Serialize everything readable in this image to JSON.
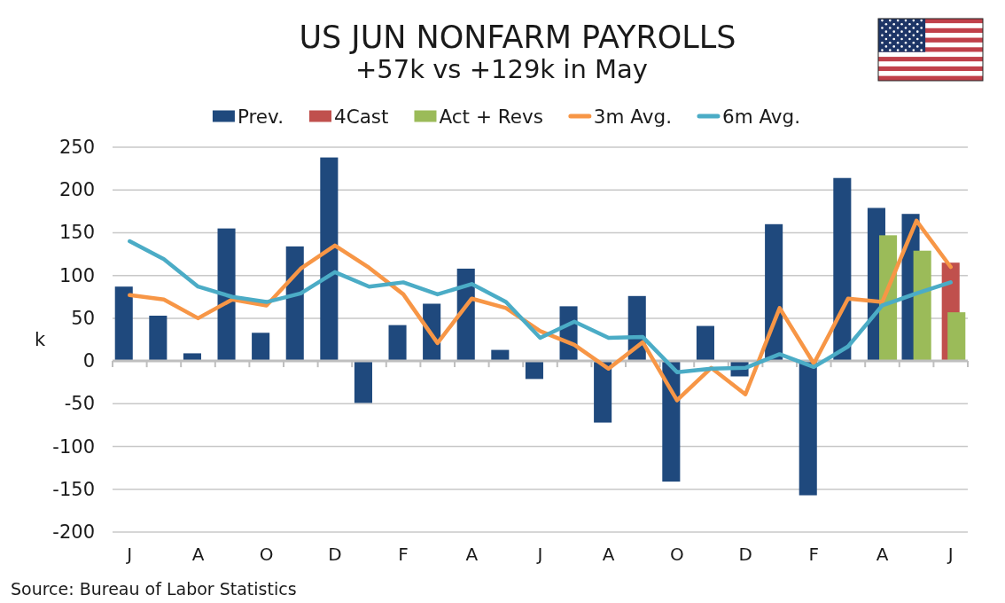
{
  "chart_data": {
    "type": "bar",
    "title": "US JUN NONFARM PAYROLLS",
    "subtitle": "+57k vs +129k in May",
    "ylabel": "k",
    "categories": [
      "J",
      null,
      "A",
      null,
      "O",
      null,
      "D",
      null,
      "F",
      null,
      "A",
      null,
      "J",
      null,
      "A",
      null,
      "O",
      null,
      "D",
      null,
      "F",
      null,
      "A",
      null,
      "J"
    ],
    "series": [
      {
        "name": "Prev.",
        "color": "#1f497d",
        "values": [
          87,
          53,
          9,
          155,
          33,
          134,
          238,
          -49,
          42,
          67,
          108,
          13,
          -21,
          64,
          -72,
          76,
          -141,
          41,
          -18,
          160,
          -157,
          214,
          179,
          172,
          null
        ]
      },
      {
        "name": "4Cast",
        "color": "#c0504d",
        "values": [
          null,
          null,
          null,
          null,
          null,
          null,
          null,
          null,
          null,
          null,
          null,
          null,
          null,
          null,
          null,
          null,
          null,
          null,
          null,
          null,
          null,
          null,
          null,
          null,
          115
        ]
      },
      {
        "name": "Act + Revs",
        "color": "#9bbb59",
        "values": [
          null,
          null,
          null,
          null,
          null,
          null,
          null,
          null,
          null,
          null,
          null,
          null,
          null,
          null,
          null,
          null,
          null,
          null,
          null,
          null,
          null,
          null,
          147,
          129,
          57
        ]
      },
      {
        "name": "3m Avg.",
        "type": "line",
        "color": "#f79646",
        "values": [
          77,
          72,
          50,
          72,
          65,
          108,
          135,
          109,
          78,
          21,
          73,
          62,
          35,
          19,
          -9,
          22,
          -46,
          -8,
          -39,
          62,
          -3,
          73,
          69,
          164,
          110
        ]
      },
      {
        "name": "6m Avg.",
        "type": "line",
        "color": "#4bacc6",
        "values": [
          140,
          119,
          87,
          75,
          69,
          79,
          104,
          87,
          92,
          78,
          90,
          69,
          27,
          46,
          27,
          28,
          -13,
          -9,
          -8,
          8,
          -7,
          17,
          65,
          79,
          92
        ]
      }
    ],
    "ylim": [
      -200,
      250
    ],
    "yticks": [
      -200,
      -150,
      -100,
      -50,
      0,
      50,
      100,
      150,
      200,
      250
    ],
    "grid": "y",
    "legend": "top",
    "marker": "none",
    "line_style": "solid",
    "annotations": [
      "Source: Bureau of Labor Statistics"
    ]
  }
}
